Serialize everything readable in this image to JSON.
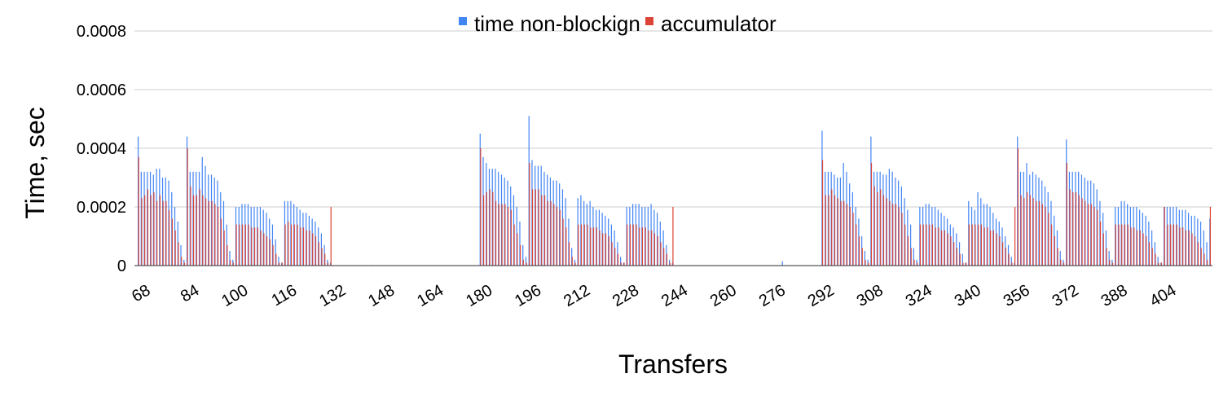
{
  "chart_data": {
    "type": "bar",
    "xlabel": "Transfers",
    "ylabel": "Time, sec",
    "ylim": [
      0,
      0.0008
    ],
    "y_ticks": [
      "0",
      "0.0002",
      "0.0004",
      "0.0006",
      "0.0008"
    ],
    "x_range": [
      68,
      418
    ],
    "x_tick_labels": [
      "68",
      "84",
      "100",
      "116",
      "132",
      "148",
      "164",
      "180",
      "196",
      "212",
      "228",
      "244",
      "260",
      "276",
      "292",
      "308",
      "324",
      "340",
      "356",
      "372",
      "388",
      "404"
    ],
    "grid": true,
    "legend_position": "top",
    "colors": {
      "time non-blockign": "#4285F4",
      "accumulator": "#DB4437"
    },
    "series": [
      {
        "name": "time non-blockign",
        "values": [
          0.00044,
          0.00032,
          0.00032,
          0.00032,
          0.00032,
          0.00031,
          0.00033,
          0.00033,
          0.0003,
          0.0003,
          0.00029,
          0.00025,
          0.0002,
          0.00015,
          7e-05,
          2e-05,
          0.00044,
          0.00032,
          0.00032,
          0.00032,
          0.00032,
          0.00037,
          0.00034,
          0.00031,
          0.00031,
          0.0003,
          0.00029,
          0.00025,
          0.00022,
          0.00014,
          5e-05,
          2e-05,
          0.0002,
          0.0002,
          0.00021,
          0.00021,
          0.00021,
          0.0002,
          0.0002,
          0.0002,
          0.0002,
          0.00019,
          0.00018,
          0.00016,
          0.00014,
          9e-05,
          3e-05,
          1e-05,
          0.00022,
          0.00022,
          0.00022,
          0.00021,
          0.0002,
          0.00019,
          0.00018,
          0.00018,
          0.00017,
          0.00016,
          0.00015,
          0.00013,
          0.00011,
          7e-05,
          2e-05,
          1e-05,
          0,
          0,
          0,
          0,
          0,
          0,
          0,
          0,
          0,
          0,
          0,
          0,
          0,
          0,
          0,
          0,
          0,
          0,
          0,
          0,
          0,
          0,
          0,
          0,
          0,
          0,
          0,
          0,
          0,
          0,
          0,
          0,
          0,
          0,
          0,
          0,
          0,
          0,
          0,
          0,
          0,
          0,
          0,
          0,
          0,
          0,
          0,
          0,
          0.00045,
          0.00037,
          0.00035,
          0.00033,
          0.00033,
          0.00033,
          0.00032,
          0.00031,
          0.0003,
          0.00029,
          0.00027,
          0.00024,
          0.0002,
          0.00015,
          7e-05,
          3e-05,
          0.00051,
          0.00036,
          0.00034,
          0.00034,
          0.00034,
          0.00032,
          0.00031,
          0.0003,
          0.00029,
          0.00029,
          0.00028,
          0.00026,
          0.00023,
          0.00016,
          6e-05,
          2e-05,
          0.00023,
          0.00024,
          0.00022,
          0.00021,
          0.00022,
          0.0002,
          0.00019,
          0.00019,
          0.00018,
          0.00017,
          0.00016,
          0.00014,
          0.00012,
          8e-05,
          3e-05,
          1e-05,
          0.0002,
          0.0002,
          0.00021,
          0.00021,
          0.00021,
          0.0002,
          0.0002,
          0.0002,
          0.00021,
          0.00019,
          0.00018,
          0.00015,
          0.00012,
          7e-05,
          2e-05,
          1e-05,
          0,
          0,
          0,
          0,
          0,
          0,
          0,
          0,
          0,
          0,
          0,
          0,
          0,
          0,
          0,
          0,
          0,
          0,
          0,
          0,
          0,
          0,
          0,
          0,
          0,
          0,
          0,
          0,
          0,
          0,
          0,
          0,
          0,
          0,
          0,
          1.5e-05,
          0,
          0,
          0,
          0,
          0,
          0,
          0,
          0,
          0,
          0,
          0,
          0,
          0.00046,
          0.00032,
          0.00032,
          0.00032,
          0.00031,
          0.0003,
          0.0003,
          0.00035,
          0.00032,
          0.00028,
          0.00025,
          0.0002,
          0.00016,
          0.0001,
          5e-05,
          2e-05,
          0.00044,
          0.00032,
          0.00032,
          0.00032,
          0.00031,
          0.00031,
          0.00033,
          0.00032,
          0.0003,
          0.00029,
          0.00027,
          0.00023,
          0.00019,
          0.00014,
          6e-05,
          2e-05,
          0.0002,
          0.0002,
          0.00021,
          0.00021,
          0.0002,
          0.0002,
          0.00019,
          0.00018,
          0.00017,
          0.00016,
          0.00014,
          0.00013,
          0.00011,
          8e-05,
          4e-05,
          1e-05,
          0.00022,
          0.0002,
          0.00019,
          0.00025,
          0.00023,
          0.00021,
          0.00021,
          0.0002,
          0.00018,
          0.00016,
          0.00015,
          0.00013,
          0.0001,
          7e-05,
          3e-05,
          1e-05,
          0.00044,
          0.00032,
          0.00032,
          0.00035,
          0.00031,
          0.00032,
          0.00031,
          0.0003,
          0.00029,
          0.00027,
          0.00025,
          0.00022,
          0.00017,
          0.00012,
          5e-05,
          2e-05,
          0.00043,
          0.00032,
          0.00032,
          0.00032,
          0.00032,
          0.00031,
          0.0003,
          0.00029,
          0.00029,
          0.00028,
          0.00026,
          0.00022,
          0.00018,
          0.00012,
          5e-05,
          2e-05,
          0.0002,
          0.0002,
          0.00022,
          0.00022,
          0.00021,
          0.0002,
          0.0002,
          0.0002,
          0.00019,
          0.00018,
          0.00017,
          0.00015,
          0.00012,
          8e-05,
          3e-05,
          1e-05,
          0.0002,
          0.0002,
          0.0002,
          0.0002,
          0.0002,
          0.00019,
          0.00019,
          0.00019,
          0.00018,
          0.00017,
          0.00017,
          0.00016,
          0.00015,
          0.00012,
          8e-05,
          0.00016
        ]
      },
      {
        "name": "accumulator",
        "values": [
          0.00037,
          0.00023,
          0.00024,
          0.00026,
          0.00024,
          0.00025,
          0.00022,
          0.00024,
          0.00022,
          0.00022,
          0.00019,
          0.00016,
          0.00012,
          8e-05,
          3e-05,
          1e-05,
          0.0004,
          0.00027,
          0.00024,
          0.00024,
          0.00026,
          0.00024,
          0.00023,
          0.00022,
          0.00022,
          0.00021,
          0.0002,
          0.00016,
          0.00012,
          7e-05,
          2e-05,
          1e-05,
          0.00014,
          0.00014,
          0.00014,
          0.00014,
          0.00014,
          0.00013,
          0.00013,
          0.00013,
          0.00012,
          0.00011,
          0.0001,
          9e-05,
          7e-05,
          4e-05,
          1e-05,
          1e-05,
          0.00014,
          0.00015,
          0.00014,
          0.00014,
          0.00014,
          0.00013,
          0.00013,
          0.00012,
          0.00012,
          0.00011,
          0.0001,
          8e-05,
          6e-05,
          4e-05,
          1e-05,
          0.0002,
          0,
          0,
          0,
          0,
          0,
          0,
          0,
          0,
          0,
          0,
          0,
          0,
          0,
          0,
          0,
          0,
          0,
          0,
          0,
          0,
          0,
          0,
          0,
          0,
          0,
          0,
          0,
          0,
          0,
          0,
          0,
          0,
          0,
          0,
          0,
          0,
          0,
          0,
          0,
          0,
          0,
          0,
          0,
          0,
          0,
          0,
          0,
          0,
          0.0004,
          0.00024,
          0.00025,
          0.00026,
          0.00025,
          0.00022,
          0.00021,
          0.00021,
          0.00021,
          0.0002,
          0.00019,
          0.00014,
          0.00011,
          7e-05,
          2e-05,
          1e-05,
          0.00035,
          0.00026,
          0.00026,
          0.00026,
          0.00024,
          0.00024,
          0.00022,
          0.00022,
          0.00021,
          0.0002,
          0.00019,
          0.00016,
          0.00013,
          8e-05,
          3e-05,
          1e-05,
          0.00014,
          0.00014,
          0.00014,
          0.00014,
          0.00013,
          0.00013,
          0.00013,
          0.00012,
          0.00011,
          0.00011,
          0.0001,
          8e-05,
          6e-05,
          4e-05,
          1e-05,
          1e-05,
          0.00014,
          0.00014,
          0.00014,
          0.00014,
          0.00013,
          0.00013,
          0.00013,
          0.00012,
          0.00012,
          0.00011,
          0.0001,
          8e-05,
          6e-05,
          4e-05,
          1e-05,
          0.0002,
          0,
          0,
          0,
          0,
          0,
          0,
          0,
          0,
          0,
          0,
          0,
          0,
          0,
          0,
          0,
          0,
          0,
          0,
          0,
          0,
          0,
          0,
          0,
          0,
          0,
          0,
          0,
          0,
          0,
          0,
          0,
          0,
          0,
          0,
          0,
          0,
          0,
          0,
          0,
          0,
          0,
          0,
          0,
          0,
          0,
          0,
          0,
          0,
          0.00036,
          0.00024,
          0.00024,
          0.00026,
          0.00024,
          0.00023,
          0.00022,
          0.00022,
          0.00021,
          0.0002,
          0.00018,
          0.00014,
          0.0001,
          6e-05,
          2e-05,
          1e-05,
          0.00035,
          0.00027,
          0.00025,
          0.00026,
          0.00024,
          0.00023,
          0.00022,
          0.00021,
          0.00021,
          0.0002,
          0.00018,
          0.00014,
          0.0001,
          6e-05,
          2e-05,
          1e-05,
          0.00014,
          0.00014,
          0.00014,
          0.00014,
          0.00014,
          0.00013,
          0.00013,
          0.00012,
          0.00012,
          0.00011,
          0.0001,
          8e-05,
          6e-05,
          4e-05,
          1e-05,
          1e-05,
          0.00014,
          0.00014,
          0.00014,
          0.00014,
          0.00014,
          0.00013,
          0.00013,
          0.00012,
          0.00012,
          0.00011,
          0.0001,
          8e-05,
          6e-05,
          4e-05,
          1e-05,
          0.0002,
          0.0004,
          0.00024,
          0.00023,
          0.00025,
          0.00024,
          0.00023,
          0.00022,
          0.00022,
          0.00021,
          0.0002,
          0.00018,
          0.00014,
          0.0001,
          6e-05,
          2e-05,
          1e-05,
          0.00035,
          0.00026,
          0.00025,
          0.00025,
          0.00024,
          0.00023,
          0.00022,
          0.00021,
          0.00021,
          0.0002,
          0.00019,
          0.00015,
          0.00011,
          6e-05,
          2e-05,
          1e-05,
          0.00014,
          0.00014,
          0.00014,
          0.00014,
          0.00014,
          0.00013,
          0.00013,
          0.00012,
          0.00012,
          0.00011,
          0.0001,
          8e-05,
          6e-05,
          4e-05,
          1e-05,
          1e-05,
          0.0002,
          0.00014,
          0.00014,
          0.00014,
          0.00014,
          0.00013,
          0.00013,
          0.00012,
          0.00012,
          0.00011,
          0.0001,
          8e-05,
          6e-05,
          4e-05,
          2e-05,
          0.0002
        ]
      }
    ]
  }
}
